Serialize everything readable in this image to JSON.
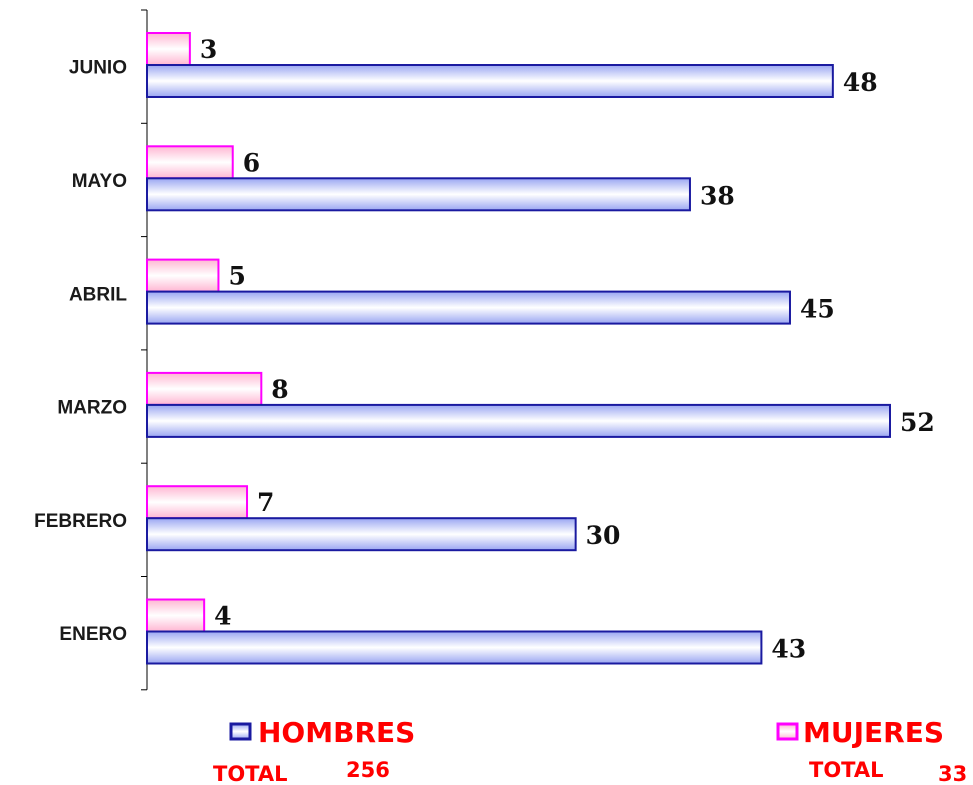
{
  "chart_data": {
    "type": "bar",
    "orientation": "horizontal",
    "categories": [
      "JUNIO",
      "MAYO",
      "ABRIL",
      "MARZO",
      "FEBRERO",
      "ENERO"
    ],
    "series": [
      {
        "name": "HOMBRES",
        "values": [
          48,
          38,
          45,
          52,
          30,
          43
        ],
        "color": "#1a1aa0",
        "fill": "#c8d0f8"
      },
      {
        "name": "MUJERES",
        "values": [
          3,
          6,
          5,
          8,
          7,
          4
        ],
        "color": "#ff00ff",
        "fill": "#ffc8dc"
      }
    ],
    "xlim": [
      0,
      52
    ],
    "grid": false,
    "legend_placement": "bottom"
  },
  "legend": {
    "hombres": {
      "label": "HOMBRES",
      "total_label": "TOTAL",
      "total_value": "256"
    },
    "mujeres": {
      "label": "MUJERES",
      "total_label": "TOTAL",
      "total_value": "33"
    }
  },
  "colors": {
    "legend_text": "#ff0000",
    "axis": "#000000"
  }
}
